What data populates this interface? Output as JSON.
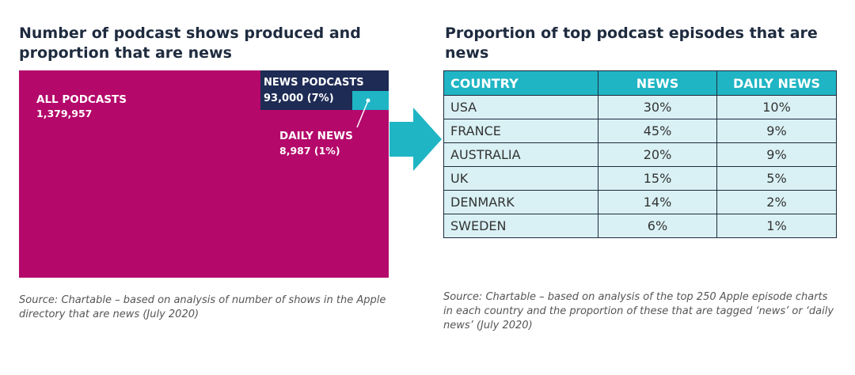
{
  "left_panel": {
    "title": "Number of podcast shows produced and proportion that are news",
    "source": "Source: Chartable – based on analysis of number of shows in the Apple directory that are news (July 2020)"
  },
  "right_panel": {
    "title": "Proportion of top podcast episodes that are news",
    "source": "Source: Chartable – based on analysis of the top 250 Apple episode charts in each country and the proportion of these that are tagged ‘news’ or ‘daily news’ (July 2020)"
  },
  "colors": {
    "all_podcasts": "#b4086b",
    "news_podcasts": "#1e2b55",
    "daily_news": "#1fb5c4",
    "table_header": "#1fb5c4",
    "table_cell": "#d9f1f4",
    "arrow": "#1fb5c4"
  },
  "chart_data": [
    {
      "type": "treemap",
      "items": [
        {
          "label": "ALL PODCASTS",
          "value_text": "1,379,957",
          "value": 1379957
        },
        {
          "label": "NEWS PODCASTS",
          "value_text": "93,000 (7%)",
          "value": 93000,
          "share_pct": 7
        },
        {
          "label": "DAILY NEWS",
          "value_text": "8,987 (1%)",
          "value": 8987,
          "share_pct": 1
        }
      ]
    },
    {
      "type": "table",
      "columns": [
        "COUNTRY",
        "NEWS",
        "DAILY NEWS"
      ],
      "rows": [
        [
          "USA",
          "30%",
          "10%"
        ],
        [
          "FRANCE",
          "45%",
          "9%"
        ],
        [
          "AUSTRALIA",
          "20%",
          "9%"
        ],
        [
          "UK",
          "15%",
          "5%"
        ],
        [
          "DENMARK",
          "14%",
          "2%"
        ],
        [
          "SWEDEN",
          "6%",
          "1%"
        ]
      ]
    }
  ]
}
